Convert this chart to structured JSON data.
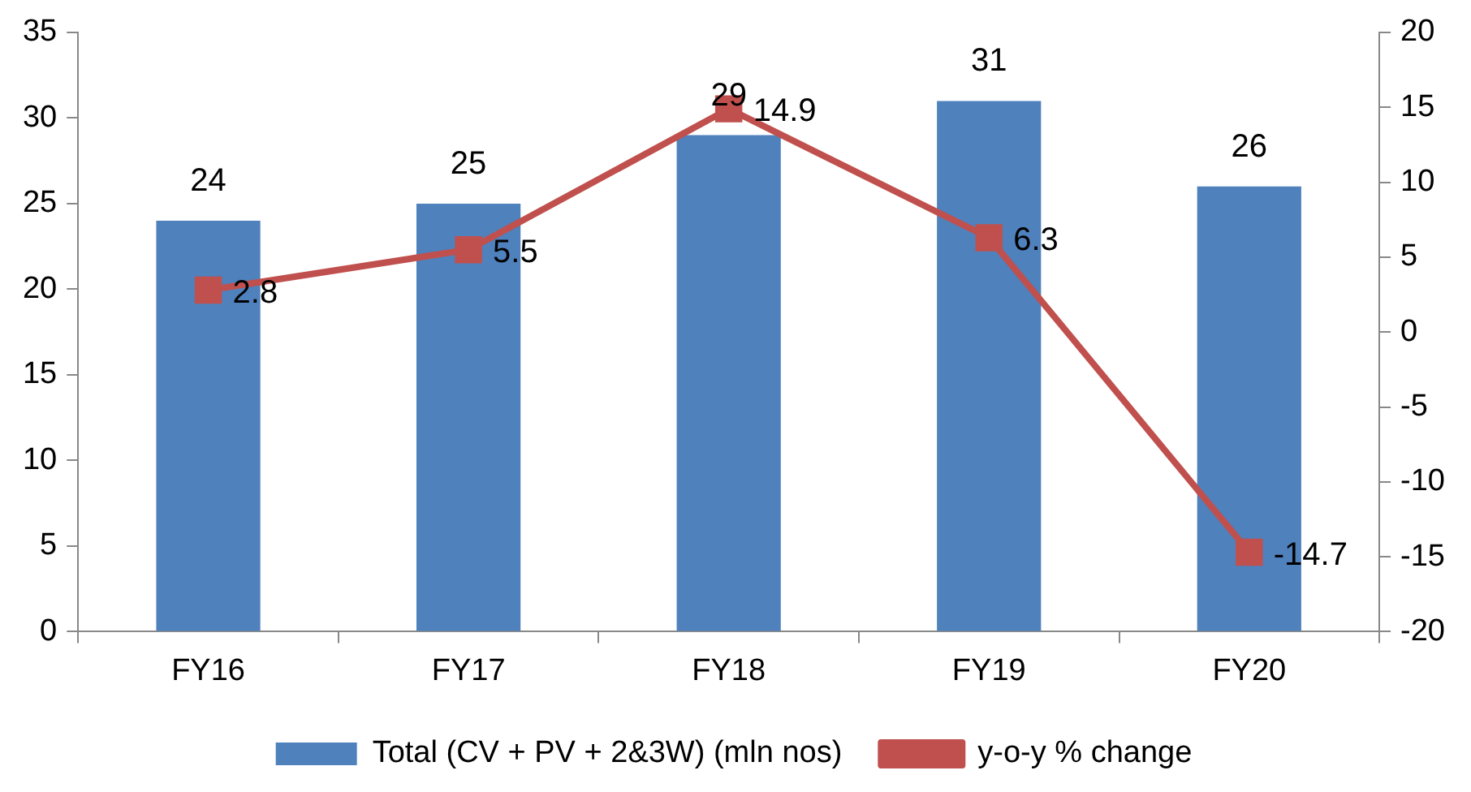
{
  "chart_data": {
    "type": "bar",
    "categories": [
      "FY16",
      "FY17",
      "FY18",
      "FY19",
      "FY20"
    ],
    "series": [
      {
        "name": "Total (CV + PV + 2&3W) (mln nos)",
        "color": "#4f81bd",
        "values": [
          24,
          25,
          29,
          31,
          26
        ]
      },
      {
        "name": "y-o-y % change",
        "type": "line",
        "axis": "y2",
        "color": "#c0504d",
        "values": [
          2.8,
          5.5,
          14.9,
          6.3,
          -14.7
        ]
      }
    ],
    "ylim": [
      0,
      35
    ],
    "yticks": [
      0,
      5,
      10,
      15,
      20,
      25,
      30,
      35
    ],
    "y2lim": [
      -20,
      20
    ],
    "y2ticks": [
      -20,
      -15,
      -10,
      -5,
      0,
      5,
      10,
      15,
      20
    ],
    "data_labels": true,
    "legend": "bottom",
    "marker": "square",
    "line_style": "solid"
  }
}
